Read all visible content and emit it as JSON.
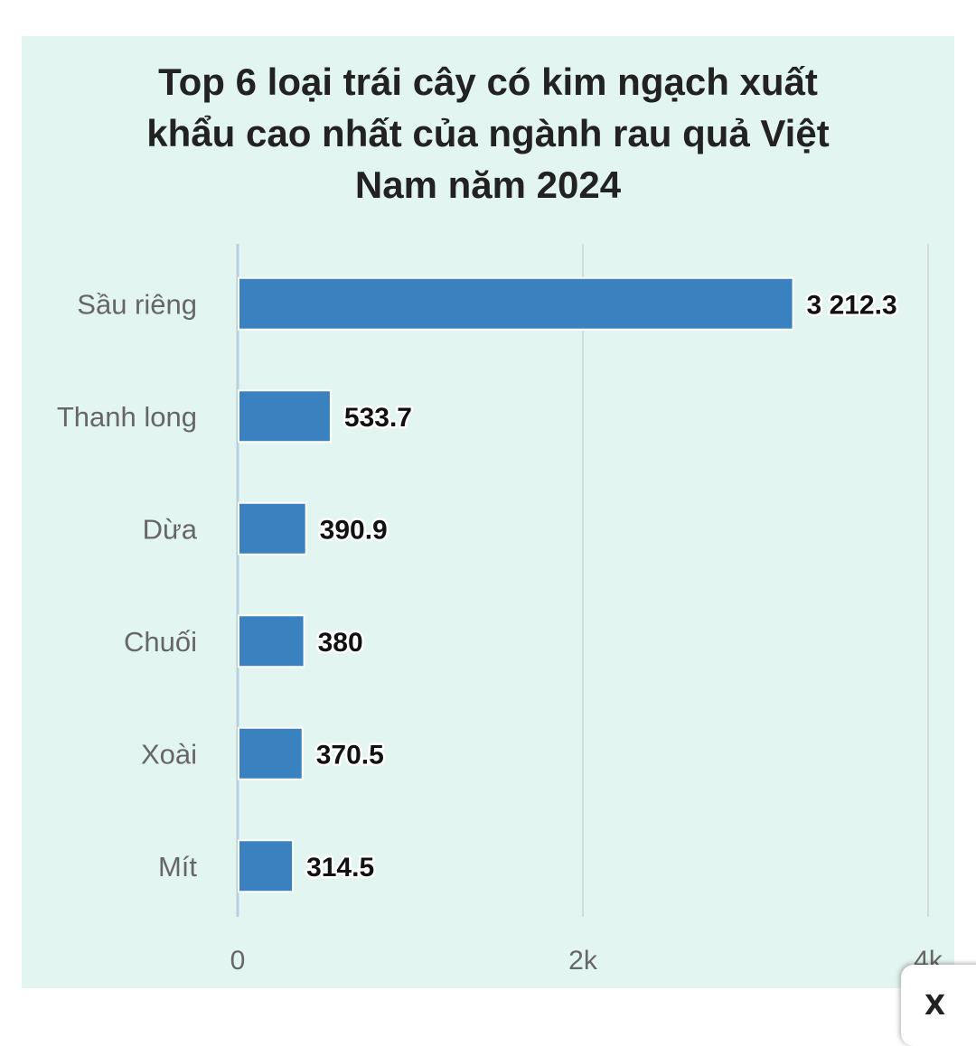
{
  "chart_data": {
    "type": "bar",
    "orientation": "horizontal",
    "title_lines": [
      "Top 6 loại trái cây có kim ngạch xuất",
      "khẩu cao nhất của ngành rau quả Việt",
      "Nam năm 2024"
    ],
    "categories": [
      "Sầu riêng",
      "Thanh long",
      "Dừa",
      "Chuối",
      "Xoài",
      "Mít"
    ],
    "values": [
      3212.3,
      533.7,
      390.9,
      380,
      370.5,
      314.5
    ],
    "value_labels": [
      "3 212.3",
      "533.7",
      "390.9",
      "380",
      "370.5",
      "314.5"
    ],
    "xlim": [
      0,
      4000
    ],
    "x_ticks": [
      0,
      2000,
      4000
    ],
    "x_tick_labels": [
      "0",
      "2k",
      "4k"
    ],
    "grid": "vertical",
    "bar_color": "#3a82bf",
    "background_color": "#e3f5f1"
  },
  "overlay": {
    "close_label": "X"
  }
}
